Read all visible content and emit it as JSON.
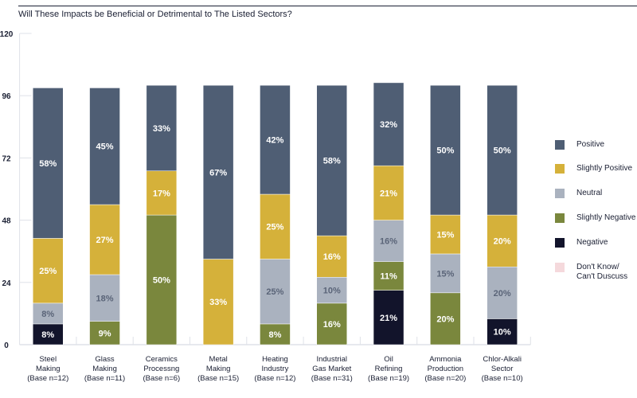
{
  "chart_data": {
    "type": "bar",
    "stacked": true,
    "title": "Will These Impacts be Beneficial or Detrimental to The Listed Sectors?",
    "categories": [
      "Steel\nMaking\n(Base n=12)",
      "Glass\nMaking\n(Base n=11)",
      "Ceramics\nProcessng\n(Base n=6)",
      "Metal\nMaking\n(Base n=15)",
      "Heating\nIndustry\n(Base n=12)",
      "Industrial\nGas Market\n(Base n=31)",
      "Oil\nRefining\n(Base n=19)",
      "Ammonia\nProduction\n(Base n=20)",
      "Chlor-Alkali\nSector\n(Base n=10)"
    ],
    "series": [
      {
        "name": "Negative",
        "color": "#12142b",
        "label_color": "#ffffff",
        "values": [
          8,
          0,
          0,
          0,
          0,
          0,
          21,
          0,
          10
        ]
      },
      {
        "name": "Slightly Negative",
        "color": "#7a873d",
        "label_color": "#ffffff",
        "values": [
          0,
          9,
          50,
          0,
          8,
          16,
          11,
          20,
          0
        ]
      },
      {
        "name": "Neutral",
        "color": "#aab2bf",
        "label_color": "#5a6478",
        "values": [
          8,
          18,
          0,
          0,
          25,
          10,
          16,
          15,
          20
        ]
      },
      {
        "name": "Slightly Positive",
        "color": "#d5b13a",
        "label_color": "#ffffff",
        "values": [
          25,
          27,
          17,
          33,
          25,
          16,
          21,
          15,
          20
        ]
      },
      {
        "name": "Positive",
        "color": "#4f5e74",
        "label_color": "#ffffff",
        "values": [
          58,
          45,
          33,
          67,
          42,
          58,
          32,
          50,
          50
        ]
      },
      {
        "name": "Don't Know/\nCan't Duscuss",
        "color": "#f5d9dc",
        "label_color": "#ffffff",
        "values": [
          0,
          0,
          0,
          0,
          0,
          0,
          0,
          0,
          0
        ]
      }
    ],
    "legend_order": [
      "Positive",
      "Slightly Positive",
      "Neutral",
      "Slightly Negative",
      "Negative",
      "Don't Know/\nCan't Duscuss"
    ],
    "yticks": [
      0,
      24,
      48,
      72,
      96,
      120
    ],
    "ylim": [
      0,
      120
    ],
    "legend_position": "right",
    "grid": false
  }
}
